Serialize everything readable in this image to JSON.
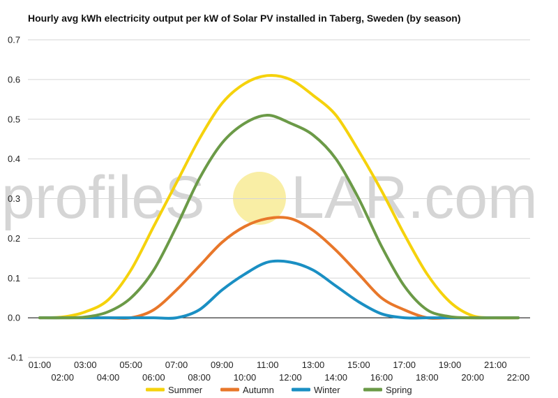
{
  "chart_data": {
    "type": "line",
    "title": "Hourly avg kWh electricity output per kW of Solar PV installed in Taberg, Sweden (by season)",
    "xlabel": "",
    "ylabel": "",
    "x": [
      "01:00",
      "02:00",
      "03:00",
      "04:00",
      "05:00",
      "06:00",
      "07:00",
      "08:00",
      "09:00",
      "10:00",
      "11:00",
      "12:00",
      "13:00",
      "14:00",
      "15:00",
      "16:00",
      "17:00",
      "18:00",
      "19:00",
      "20:00",
      "21:00",
      "22:00"
    ],
    "ylim": [
      -0.1,
      0.7
    ],
    "yticks": [
      "-0.1",
      "0.0",
      "0.1",
      "0.2",
      "0.3",
      "0.4",
      "0.5",
      "0.6",
      "0.7"
    ],
    "grid": true,
    "legend_position": "bottom",
    "series": [
      {
        "name": "Summer",
        "color": "#f5d20c",
        "values": [
          0.0,
          0.002,
          0.015,
          0.045,
          0.12,
          0.23,
          0.34,
          0.45,
          0.54,
          0.59,
          0.61,
          0.6,
          0.56,
          0.51,
          0.42,
          0.32,
          0.21,
          0.11,
          0.04,
          0.005,
          0.0,
          0.0
        ]
      },
      {
        "name": "Autumn",
        "color": "#e8772a",
        "values": [
          0.0,
          0.0,
          0.0,
          0.0,
          0.0,
          0.02,
          0.07,
          0.13,
          0.19,
          0.23,
          0.25,
          0.25,
          0.22,
          0.17,
          0.11,
          0.05,
          0.02,
          0.0,
          0.0,
          0.0,
          0.0,
          0.0
        ]
      },
      {
        "name": "Winter",
        "color": "#1a8fc3",
        "values": [
          0.0,
          0.0,
          0.0,
          0.0,
          0.0,
          0.0,
          0.0,
          0.02,
          0.07,
          0.11,
          0.14,
          0.14,
          0.12,
          0.08,
          0.04,
          0.01,
          0.0,
          0.0,
          0.0,
          0.0,
          0.0,
          0.0
        ]
      },
      {
        "name": "Spring",
        "color": "#6b9a47",
        "values": [
          0.0,
          0.0,
          0.002,
          0.015,
          0.05,
          0.12,
          0.23,
          0.35,
          0.44,
          0.49,
          0.51,
          0.49,
          0.46,
          0.4,
          0.3,
          0.18,
          0.08,
          0.02,
          0.003,
          0.0,
          0.0,
          0.0
        ]
      }
    ]
  },
  "watermark": {
    "left": "profileS",
    "right": "LAR.com",
    "sun_color": "#f9eea5"
  }
}
